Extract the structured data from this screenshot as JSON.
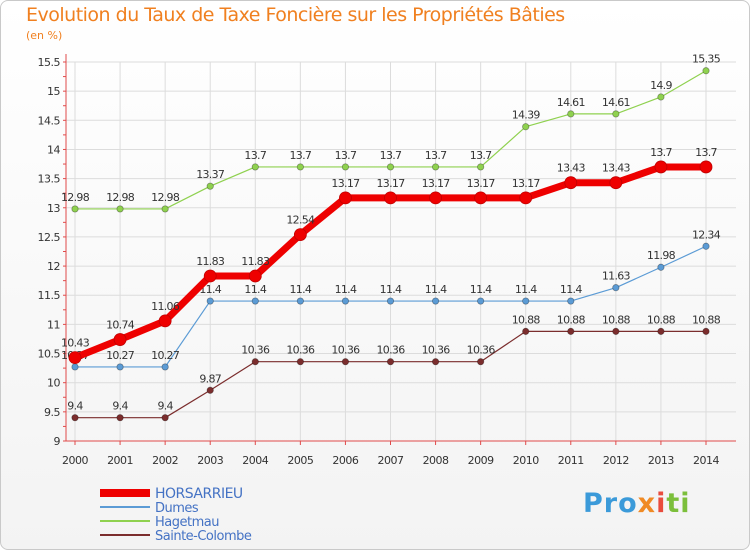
{
  "chart_data": {
    "type": "line",
    "title": "Evolution du Taux de Taxe Foncière sur les Propriétés Bâties",
    "subtitle": "(en %)",
    "x": [
      "2000",
      "2001",
      "2002",
      "2003",
      "2004",
      "2005",
      "2006",
      "2007",
      "2008",
      "2009",
      "2010",
      "2011",
      "2012",
      "2013",
      "2014"
    ],
    "ylim": [
      9,
      15.5
    ],
    "yticks": [
      "9",
      "9.5",
      "10",
      "10.5",
      "11",
      "11.5",
      "12",
      "12.5",
      "13",
      "13.5",
      "14",
      "14.5",
      "15",
      "15.5"
    ],
    "ytick_values": [
      9,
      9.5,
      10,
      10.5,
      11,
      11.5,
      12,
      12.5,
      13,
      13.5,
      14,
      14.5,
      15,
      15.5
    ],
    "grid": true,
    "legend_position": "bottom-left",
    "series": [
      {
        "name": "HORSARRIEU",
        "color": "#ee0000",
        "emphasis": true,
        "values": [
          10.43,
          10.74,
          11.06,
          11.83,
          11.83,
          12.54,
          13.17,
          13.17,
          13.17,
          13.17,
          13.17,
          13.43,
          13.43,
          13.7,
          13.7
        ],
        "labels": [
          "10.43",
          "10.74",
          "11.06",
          "11.83",
          "11.83",
          "12.54",
          "13.17",
          "13.17",
          "13.17",
          "13.17",
          "13.17",
          "13.43",
          "13.43",
          "13.7",
          "13.7"
        ]
      },
      {
        "name": "Dumes",
        "color": "#5b9bd5",
        "emphasis": false,
        "values": [
          10.27,
          10.27,
          10.27,
          11.4,
          11.4,
          11.4,
          11.4,
          11.4,
          11.4,
          11.4,
          11.4,
          11.4,
          11.63,
          11.98,
          12.34
        ],
        "labels": [
          "10.27",
          "10.27",
          "10.27",
          "11.4",
          "11.4",
          "11.4",
          "11.4",
          "11.4",
          "11.4",
          "11.4",
          "11.4",
          "11.4",
          "11.63",
          "11.98",
          "12.34"
        ]
      },
      {
        "name": "Hagetmau",
        "color": "#8fd14f",
        "emphasis": false,
        "values": [
          12.98,
          12.98,
          12.98,
          13.37,
          13.7,
          13.7,
          13.7,
          13.7,
          13.7,
          13.7,
          14.39,
          14.61,
          14.61,
          14.9,
          15.35
        ],
        "labels": [
          "12.98",
          "12.98",
          "12.98",
          "13.37",
          "13.7",
          "13.7",
          "13.7",
          "13.7",
          "13.7",
          "13.7",
          "14.39",
          "14.61",
          "14.61",
          "14.9",
          "15.35"
        ]
      },
      {
        "name": "Sainte-Colombe",
        "color": "#7b2d2d",
        "emphasis": false,
        "values": [
          9.4,
          9.4,
          9.4,
          9.87,
          10.36,
          10.36,
          10.36,
          10.36,
          10.36,
          10.36,
          10.88,
          10.88,
          10.88,
          10.88,
          10.88
        ],
        "labels": [
          "9.4",
          "9.4",
          "9.4",
          "9.87",
          "10.36",
          "10.36",
          "10.36",
          "10.36",
          "10.36",
          "10.36",
          "10.88",
          "10.88",
          "10.88",
          "10.88",
          "10.88"
        ]
      }
    ]
  },
  "logo": {
    "part1": "Pro",
    "part2": "x",
    "part3": "i",
    "part4": "ti"
  }
}
